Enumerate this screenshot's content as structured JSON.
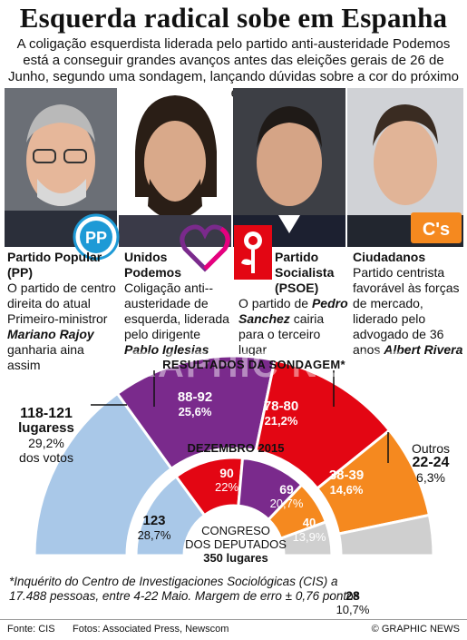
{
  "title": "Esquerda radical sobe em Espanha",
  "intro": "A coligação esquerdista liderada pelo partido anti-austeridade Podemos está a conseguir grandes avanços antes das eleições gerais de 26 de Junho, segundo uma sondagem, lançando dúvidas sobre a cor do próximo governo",
  "parties": [
    {
      "name": "Partido Popular (PP)",
      "desc": "O partido de centro direita do atual Primeiro-ministror",
      "leader": "Mariano Rajoy",
      "after": "ganharia aina assim",
      "logo": "pp-logo",
      "color": "#1e9ad6"
    },
    {
      "name": "Unidos Podemos",
      "desc": "Coligação anti--austeridade de esquerda, liderada pelo dirigente",
      "leader": "Pablo Iglesias",
      "after": "",
      "logo": "podemos-heart-logo",
      "color": "#7a2a8c"
    },
    {
      "name": "Partido Socialista (PSOE)",
      "desc": "O partido de",
      "leader": "Pedro Sanchez",
      "after": "cairia para o terceiro lugar",
      "logo": "psoe-rose-logo",
      "color": "#e30613"
    },
    {
      "name": "Ciudadanos",
      "desc": "Partido centrista favorável às forças de mercado, liderado pelo advogado de 36 anos",
      "leader": "Albert Rivera",
      "after": "",
      "logo": "cs-logo",
      "color": "#f5891f"
    }
  ],
  "logo_text": {
    "pp": "PP",
    "cs": "C's"
  },
  "results_title": "RESULTADOS DA SONDAGEM*",
  "december_title": "DEZEMBRO 2015",
  "watermark": "GRAPHIC NEWS",
  "outer_labels": {
    "pp": {
      "value": "118-121",
      "sub1": "lugaress",
      "sub2": "29,2%",
      "sub3": "dos votos"
    },
    "podemos": {
      "value": "88-92",
      "pct": "25,6%"
    },
    "psoe": {
      "value": "78-80",
      "pct": "21,2%"
    },
    "cs": {
      "value": "38-39",
      "pct": "14,6%"
    },
    "outros": {
      "name": "Outros",
      "value": "22-24",
      "pct": "6,3%"
    }
  },
  "inner_labels": {
    "pp": {
      "value": "123",
      "pct": "28,7%"
    },
    "psoe": {
      "value": "90",
      "pct": "22%"
    },
    "podemos": {
      "value": "69",
      "pct": "20,7%"
    },
    "cs": {
      "value": "40",
      "pct": "13,9%"
    },
    "outros": {
      "value": "28",
      "pct": "10,7%"
    }
  },
  "congress": {
    "line1": "CONGRESO",
    "line2": "DOS DEPUTADOS",
    "line3": "350 lugares"
  },
  "note": "*Inquérito do Centro de Investigaciones Sociológicas (CIS) a 17.488 pessoas, entre 4-22 Maio. Margem de erro ± 0,76 pontos",
  "footer": {
    "source": "Fonte: CIS",
    "photos": "Fotos: Associated Press, Newscom",
    "credit": "© GRAPHIC NEWS"
  },
  "chart_data": [
    {
      "type": "pie",
      "title": "RESULTADOS DA SONDAGEM*",
      "subtype": "half-donut",
      "categories": [
        "PP",
        "Unidos Podemos",
        "PSOE",
        "Ciudadanos",
        "Outros"
      ],
      "seats": [
        "118-121",
        "88-92",
        "78-80",
        "38-39",
        "22-24"
      ],
      "values": [
        29.2,
        25.6,
        21.2,
        14.6,
        6.3
      ],
      "colors": [
        "#a9c8e8",
        "#7a2a8c",
        "#e30613",
        "#f5891f",
        "#cfcfcf"
      ]
    },
    {
      "type": "pie",
      "title": "DEZEMBRO 2015",
      "subtype": "half-donut",
      "categories": [
        "PP",
        "PSOE",
        "Podemos",
        "Ciudadanos",
        "Outros"
      ],
      "seats": [
        123,
        90,
        69,
        40,
        28
      ],
      "values": [
        28.7,
        22,
        20.7,
        13.9,
        10.7
      ],
      "colors": [
        "#a9c8e8",
        "#e30613",
        "#7a2a8c",
        "#f5891f",
        "#cfcfcf"
      ]
    }
  ]
}
